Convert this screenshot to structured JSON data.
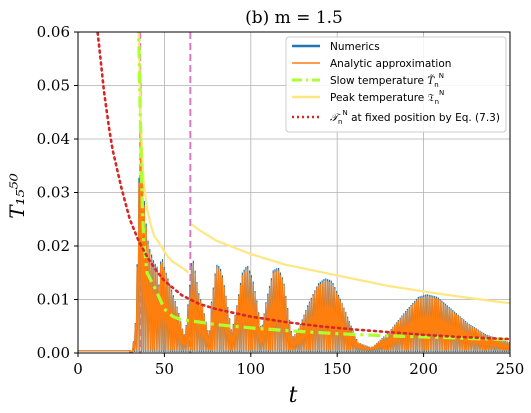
{
  "chart_data": {
    "type": "line",
    "title": "(b) m = 1.5",
    "xlabel": "t",
    "ylabel": "T₁₅⁵⁰",
    "xlim": [
      0,
      250
    ],
    "ylim": [
      0,
      0.06
    ],
    "x_ticks": [
      0,
      50,
      100,
      150,
      200,
      250
    ],
    "y_ticks": [
      0.0,
      0.01,
      0.02,
      0.03,
      0.04,
      0.05,
      0.06
    ],
    "x_tick_labels": [
      "0",
      "50",
      "100",
      "150",
      "200",
      "250"
    ],
    "y_tick_labels": [
      "0.00",
      "0.01",
      "0.02",
      "0.03",
      "0.04",
      "0.05",
      "0.06"
    ],
    "grid": true,
    "legend_position": "top-right",
    "vertical_markers": [
      {
        "x": 36,
        "color": "#e377c2"
      },
      {
        "x": 65,
        "color": "#e377c2"
      }
    ],
    "series": [
      {
        "name": "Numerics",
        "color": "#1f77b4",
        "style": "solid",
        "oscillating": true,
        "packets": [
          {
            "x_start": 30,
            "x_end": 46,
            "peaks": [
              [
                31,
                0.0
              ],
              [
                33,
                0.004
              ],
              [
                35,
                0.025
              ],
              [
                36,
                0.056
              ],
              [
                37,
                0.038
              ],
              [
                38,
                0.03
              ],
              [
                39,
                0.026
              ],
              [
                40,
                0.022
              ],
              [
                41,
                0.02
              ],
              [
                42,
                0.019
              ],
              [
                43,
                0.018
              ],
              [
                44,
                0.017
              ],
              [
                45,
                0.0165
              ],
              [
                46,
                0.016
              ]
            ]
          },
          {
            "x_start": 46,
            "x_end": 62,
            "peaks": [
              [
                47,
                0.012
              ],
              [
                48,
                0.018
              ],
              [
                49,
                0.0175
              ],
              [
                50,
                0.016
              ],
              [
                52,
                0.014
              ],
              [
                54,
                0.012
              ],
              [
                56,
                0.01
              ],
              [
                58,
                0.008
              ],
              [
                60,
                0.005
              ],
              [
                62,
                0.003
              ]
            ]
          },
          {
            "x_start": 62,
            "x_end": 76,
            "peaks": [
              [
                63,
                0.007
              ],
              [
                65,
                0.014
              ],
              [
                66,
                0.018
              ],
              [
                67,
                0.017
              ],
              [
                68,
                0.015
              ],
              [
                70,
                0.011
              ],
              [
                72,
                0.009
              ],
              [
                74,
                0.006
              ],
              [
                76,
                0.003
              ]
            ]
          },
          {
            "x_start": 76,
            "x_end": 90,
            "peaks": [
              [
                77,
                0.009
              ],
              [
                80,
                0.0165
              ],
              [
                81,
                0.0165
              ],
              [
                83,
                0.0155
              ],
              [
                85,
                0.012
              ],
              [
                87,
                0.008
              ],
              [
                89,
                0.004
              ]
            ]
          },
          {
            "x_start": 90,
            "x_end": 106,
            "peaks": [
              [
                92,
                0.009
              ],
              [
                95,
                0.015
              ],
              [
                98,
                0.0165
              ],
              [
                101,
                0.014
              ],
              [
                104,
                0.009
              ],
              [
                106,
                0.004
              ]
            ]
          },
          {
            "x_start": 106,
            "x_end": 124,
            "peaks": [
              [
                109,
                0.01
              ],
              [
                113,
                0.0155
              ],
              [
                116,
                0.016
              ],
              [
                119,
                0.0135
              ],
              [
                122,
                0.007
              ],
              [
                124,
                0.003
              ]
            ]
          },
          {
            "x_start": 124,
            "x_end": 162,
            "peaks": [
              [
                127,
                0.004
              ],
              [
                133,
                0.009
              ],
              [
                139,
                0.013
              ],
              [
                143,
                0.014
              ],
              [
                147,
                0.0135
              ],
              [
                152,
                0.01
              ],
              [
                157,
                0.006
              ],
              [
                162,
                0.002
              ]
            ]
          },
          {
            "x_start": 162,
            "x_end": 250,
            "peaks": [
              [
                170,
                0.001
              ],
              [
                180,
                0.004
              ],
              [
                190,
                0.008
              ],
              [
                197,
                0.0105
              ],
              [
                202,
                0.011
              ],
              [
                208,
                0.0105
              ],
              [
                217,
                0.008
              ],
              [
                226,
                0.0055
              ],
              [
                236,
                0.0035
              ],
              [
                245,
                0.0025
              ],
              [
                250,
                0.002
              ]
            ]
          }
        ]
      },
      {
        "name": "Analytic approximation",
        "color": "#ff7f0e",
        "style": "solid",
        "oscillating": true
      },
      {
        "name": "Slow temperature",
        "color": "#adff2f",
        "style": "dashdot",
        "points": [
          [
            35,
            0.062
          ],
          [
            36,
            0.045
          ],
          [
            37,
            0.03
          ],
          [
            38,
            0.021
          ],
          [
            40,
            0.015
          ],
          [
            45,
            0.0118
          ],
          [
            50,
            0.0082
          ],
          [
            55,
            0.0068
          ],
          [
            60,
            0.0062
          ],
          [
            70,
            0.0058
          ],
          [
            80,
            0.0053
          ],
          [
            100,
            0.0047
          ],
          [
            120,
            0.0042
          ],
          [
            150,
            0.0036
          ],
          [
            180,
            0.0032
          ],
          [
            210,
            0.0029
          ],
          [
            240,
            0.0026
          ],
          [
            250,
            0.0025
          ]
        ]
      },
      {
        "name": "Peak temperature",
        "color": "#ffe680",
        "style": "solid",
        "points": [
          [
            35,
            0.062
          ],
          [
            36,
            0.046
          ],
          [
            37,
            0.038
          ],
          [
            38,
            0.032
          ],
          [
            40,
            0.027
          ],
          [
            42,
            0.024
          ],
          [
            44,
            0.022
          ],
          [
            46,
            0.021
          ],
          [
            48,
            0.02
          ],
          [
            50,
            0.019
          ],
          [
            52,
            0.018
          ],
          [
            55,
            0.017
          ],
          [
            60,
            0.016
          ],
          [
            64,
            0.015
          ]
        ],
        "points_2": [
          [
            66,
            0.024
          ],
          [
            70,
            0.023
          ],
          [
            80,
            0.021
          ],
          [
            100,
            0.0185
          ],
          [
            120,
            0.0165
          ],
          [
            150,
            0.0145
          ],
          [
            180,
            0.0125
          ],
          [
            210,
            0.011
          ],
          [
            240,
            0.0097
          ],
          [
            250,
            0.0093
          ]
        ]
      },
      {
        "name": "T at fixed position by Eq. (7.3)",
        "color": "#d62728",
        "style": "dotted",
        "points": [
          [
            11,
            0.061
          ],
          [
            13,
            0.055
          ],
          [
            15,
            0.049
          ],
          [
            18,
            0.042
          ],
          [
            20,
            0.038
          ],
          [
            25,
            0.031
          ],
          [
            30,
            0.025
          ],
          [
            35,
            0.021
          ],
          [
            40,
            0.018
          ],
          [
            45,
            0.0155
          ],
          [
            50,
            0.0135
          ],
          [
            60,
            0.0108
          ],
          [
            70,
            0.0092
          ],
          [
            80,
            0.0082
          ],
          [
            100,
            0.0068
          ],
          [
            120,
            0.0058
          ],
          [
            140,
            0.005
          ],
          [
            160,
            0.0044
          ],
          [
            180,
            0.0039
          ],
          [
            200,
            0.0034
          ],
          [
            220,
            0.003
          ],
          [
            250,
            0.0026
          ]
        ]
      }
    ]
  },
  "legend": {
    "numerics": "Numerics",
    "analytic": "Analytic approximation",
    "slow": "Slow temperature ",
    "peak": "Peak temperature ",
    "fixed_suffix": " at fixed position by Eq. (7.3)",
    "slow_sym": "T̃",
    "peak_sym": "𝔗",
    "fixed_sym": "𝒯",
    "sub_n": "n",
    "sup_N": "N"
  }
}
